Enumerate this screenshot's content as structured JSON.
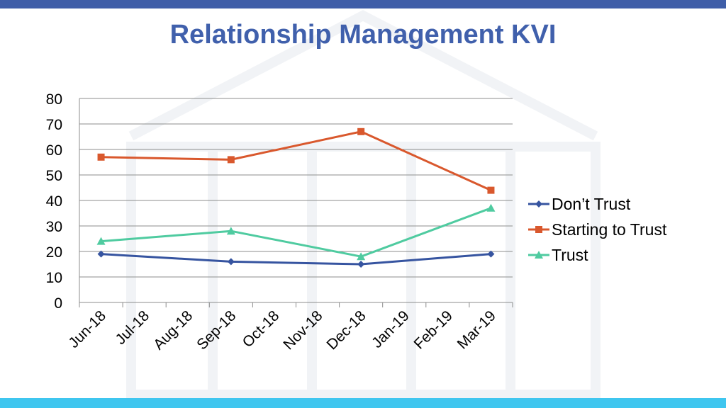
{
  "colors": {
    "top_bar": "#3f5ea8",
    "bottom_bar": "#3fc6ef",
    "title": "#4060ac",
    "dont_trust": "#3654a0",
    "starting_to_trust": "#d9582d",
    "trust": "#4fcba0"
  },
  "chart_data": {
    "type": "line",
    "title": "Relationship Management KVI",
    "categories": [
      "Jun-18",
      "Jul-18",
      "Aug-18",
      "Sep-18",
      "Oct-18",
      "Nov-18",
      "Dec-18",
      "Jan-19",
      "Feb-19",
      "Mar-19"
    ],
    "ylim": [
      0,
      80
    ],
    "yticks": [
      0,
      10,
      20,
      30,
      40,
      50,
      60,
      70,
      80
    ],
    "grid": true,
    "legend_position": "right",
    "series": [
      {
        "name": "Don’t Trust",
        "marker": "diamond",
        "color": "#3654a0",
        "values": [
          19,
          null,
          null,
          16,
          null,
          null,
          15,
          null,
          null,
          19
        ]
      },
      {
        "name": "Starting to Trust",
        "marker": "square",
        "color": "#d9582d",
        "values": [
          57,
          null,
          null,
          56,
          null,
          null,
          67,
          null,
          null,
          44
        ]
      },
      {
        "name": "Trust",
        "marker": "triangle",
        "color": "#4fcba0",
        "values": [
          24,
          null,
          null,
          28,
          null,
          null,
          18,
          null,
          null,
          37
        ]
      }
    ]
  }
}
